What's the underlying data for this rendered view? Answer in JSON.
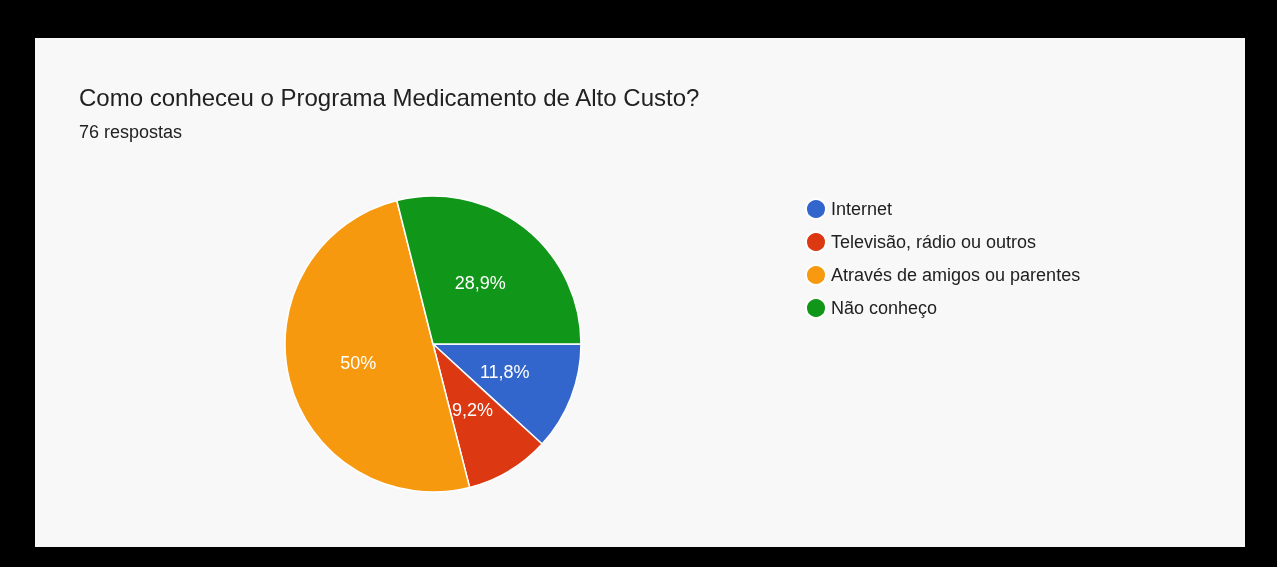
{
  "chart_data": {
    "type": "pie",
    "title": "Como conheceu o Programa Medicamento de Alto Custo?",
    "subtitle": "76 respostas",
    "categories": [
      "Internet",
      "Televisão, rádio ou outros",
      "Através de amigos ou parentes",
      "Não conheço"
    ],
    "values": [
      11.8,
      9.2,
      50,
      28.9
    ],
    "colors": [
      "#3366cc",
      "#dc3912",
      "#f7990f",
      "#109618"
    ],
    "value_labels": [
      "11,8%",
      "9,2%",
      "50%",
      "28,9%"
    ],
    "legend": "right"
  }
}
